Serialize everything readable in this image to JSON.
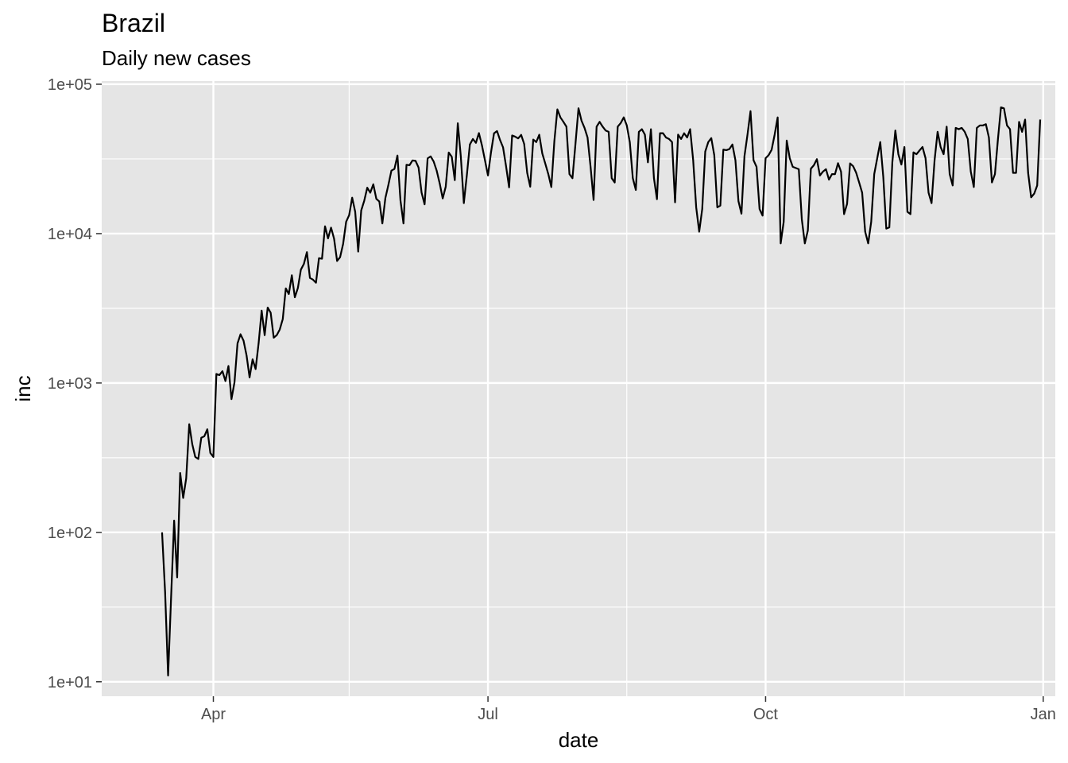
{
  "chart_data": {
    "type": "line",
    "title": "Brazil",
    "subtitle": "Daily new cases",
    "xlabel": "date",
    "ylabel": "inc",
    "y_scale": "log10",
    "ylim": [
      8,
      105000
    ],
    "xlim": [
      "2020-02-24",
      "2021-01-05"
    ],
    "y_ticks": [
      10,
      100,
      1000,
      10000,
      100000
    ],
    "y_tick_labels": [
      "1e+01",
      "1e+02",
      "1e+03",
      "1e+04",
      "1e+05"
    ],
    "x_ticks": [
      "2020-04-01",
      "2020-07-01",
      "2020-10-01",
      "2021-01-01"
    ],
    "x_tick_labels": [
      "Apr",
      "Jul",
      "Oct",
      "Jan"
    ],
    "x_minor_ticks": [
      "2020-05-16",
      "2020-08-16",
      "2020-11-16"
    ],
    "background": "#e5e5e5",
    "grid_color": "#ffffff",
    "line_color": "#000000",
    "series": [
      {
        "x_start": "2020-03-15",
        "values": [
          100,
          40,
          11,
          37,
          120,
          50,
          250,
          170,
          230,
          530,
          390,
          320,
          310,
          430,
          440,
          490,
          340,
          320,
          1150,
          1130,
          1200,
          1030,
          1300,
          780,
          1010,
          1840,
          2120,
          1920,
          1530,
          1090,
          1440,
          1240,
          1850,
          3050,
          2090,
          3200,
          2950,
          2010,
          2090,
          2280,
          2680,
          4300,
          3940,
          5260,
          3750,
          4320,
          5740,
          6270,
          7520,
          5050,
          4920,
          4690,
          6850,
          6790,
          11200,
          9290,
          10970,
          9250,
          6560,
          6960,
          8540,
          12000,
          13300,
          17400,
          14000,
          7580,
          14300,
          16600,
          20300,
          18800,
          21400,
          17100,
          16400,
          11700,
          17300,
          21200,
          26400,
          27100,
          33300,
          16700,
          11700,
          28900,
          28700,
          30900,
          30700,
          27700,
          18800,
          15700,
          31900,
          32900,
          30400,
          26400,
          21700,
          17200,
          20600,
          34900,
          32700,
          22800,
          54800,
          32900,
          16000,
          24600,
          39500,
          43000,
          40500,
          47100,
          39000,
          31000,
          24500,
          34900,
          46900,
          48600,
          42300,
          37800,
          28200,
          20400,
          45400,
          44600,
          43400,
          45800,
          39800,
          25500,
          20600,
          42600,
          41000,
          45900,
          34400,
          29400,
          25000,
          20500,
          41600,
          67900,
          60000,
          56000,
          52000,
          25000,
          23500,
          40000,
          69000,
          57000,
          51000,
          44000,
          28000,
          16800,
          52000,
          56000,
          52000,
          49000,
          48000,
          23500,
          22000,
          52000,
          55000,
          60000,
          53000,
          41000,
          23500,
          19600,
          48000,
          50000,
          46000,
          30000,
          50000,
          23500,
          17000,
          47000,
          47000,
          44000,
          43000,
          41000,
          16200,
          46000,
          43000,
          47000,
          44000,
          50000,
          31000,
          15000,
          10300,
          14600,
          35400,
          41000,
          43600,
          33400,
          15000,
          15400,
          36500,
          36200,
          36800,
          39500,
          31000,
          16500,
          13600,
          33000,
          46000,
          66000,
          31000,
          28000,
          14600,
          13200,
          32000,
          33500,
          36400,
          46000,
          60000,
          8600,
          12000,
          42000,
          32000,
          28000,
          27500,
          27000,
          12500,
          8600,
          10500,
          27200,
          28700,
          31500,
          24500,
          26000,
          27000,
          23000,
          25000,
          25000,
          29600,
          26000,
          13500,
          15800,
          29500,
          28300,
          25600,
          22000,
          18800,
          10300,
          8600,
          12000,
          25000,
          32000,
          41000,
          24000,
          10800,
          11000,
          30000,
          49000,
          34000,
          29000,
          38000,
          14000,
          13500,
          35000,
          34000,
          36000,
          38000,
          32000,
          18800,
          16000,
          31000,
          48000,
          38000,
          34000,
          52000,
          25000,
          21000,
          51000,
          50000,
          51000,
          48000,
          43000,
          26000,
          20500,
          51000,
          53000,
          53000,
          54000,
          44000,
          22000,
          25000,
          43000,
          70000,
          69000,
          53000,
          50000,
          25500,
          25500,
          56000,
          48000,
          58000,
          25500,
          17500,
          18500,
          21000,
          58000
        ]
      }
    ]
  }
}
